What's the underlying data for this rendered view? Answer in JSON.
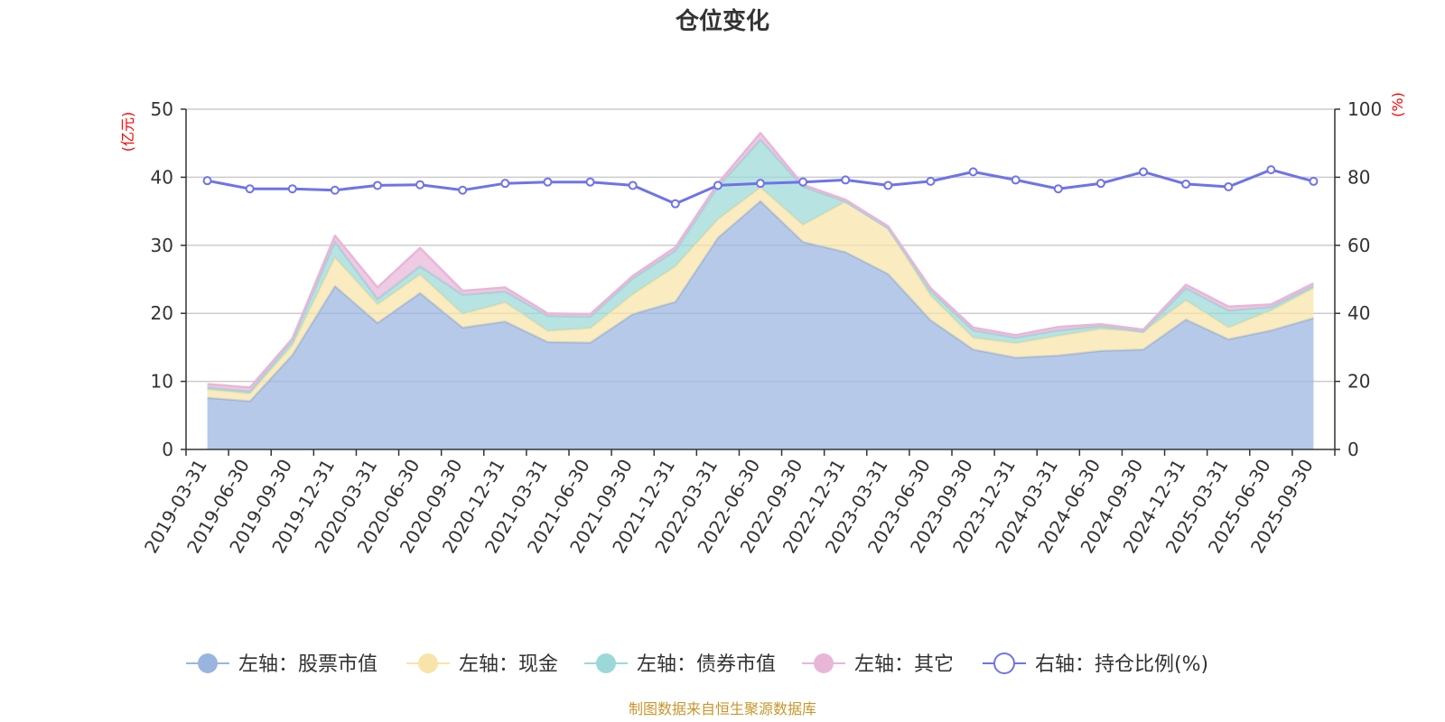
{
  "chart_data": {
    "type": "area",
    "title": "仓位变化",
    "left_axis_unit": "(亿元)",
    "right_axis_unit": "(%)",
    "left_ylim": [
      0,
      50
    ],
    "left_ticks": [
      0,
      10,
      20,
      30,
      40,
      50
    ],
    "right_ylim": [
      0,
      100
    ],
    "right_ticks": [
      0,
      20,
      40,
      60,
      80,
      100
    ],
    "categories": [
      "2019-03-31",
      "2019-06-30",
      "2019-09-30",
      "2019-12-31",
      "2020-03-31",
      "2020-06-30",
      "2020-09-30",
      "2020-12-31",
      "2021-03-31",
      "2021-06-30",
      "2021-09-30",
      "2021-12-31",
      "2022-03-31",
      "2022-06-30",
      "2022-09-30",
      "2022-12-31",
      "2023-03-31",
      "2023-06-30",
      "2023-09-30",
      "2023-12-31",
      "2024-03-31",
      "2024-06-30",
      "2024-09-30",
      "2024-12-31",
      "2025-03-31",
      "2025-06-30",
      "2025-09-30"
    ],
    "series": [
      {
        "name": "左轴：股票市值",
        "axis": "left",
        "stacked": true,
        "color": "#9ab4e0",
        "values": [
          7.6,
          7.1,
          13.9,
          24.0,
          18.6,
          23.0,
          17.9,
          18.8,
          15.8,
          15.7,
          19.9,
          21.7,
          31.1,
          36.5,
          30.5,
          29.0,
          25.8,
          19.0,
          14.7,
          13.5,
          13.8,
          14.5,
          14.7,
          19.1,
          16.2,
          17.5,
          19.3
        ]
      },
      {
        "name": "左轴：现金",
        "axis": "left",
        "stacked": true,
        "color": "#f8e4a8",
        "values": [
          1.2,
          1.1,
          1.4,
          4.2,
          2.7,
          2.7,
          2.0,
          2.8,
          1.6,
          2.1,
          2.9,
          5.2,
          2.7,
          2.0,
          2.5,
          7.4,
          6.7,
          3.6,
          1.7,
          2.1,
          2.9,
          3.2,
          2.6,
          2.8,
          1.7,
          2.9,
          4.4
        ]
      },
      {
        "name": "左轴：债券市值",
        "axis": "left",
        "stacked": true,
        "color": "#9dd8d8",
        "values": [
          0.3,
          0.3,
          0.7,
          2.3,
          0.8,
          1.2,
          2.8,
          1.6,
          2.2,
          1.7,
          2.3,
          2.3,
          4.8,
          7.0,
          5.6,
          0.0,
          0.0,
          0.7,
          1.1,
          0.8,
          0.8,
          0.4,
          0.0,
          1.8,
          2.5,
          0.5,
          0.3
        ]
      },
      {
        "name": "左轴：其它",
        "axis": "left",
        "stacked": true,
        "color": "#e8b6d8",
        "values": [
          0.5,
          0.6,
          0.3,
          0.9,
          1.7,
          2.7,
          0.6,
          0.6,
          0.4,
          0.4,
          0.4,
          0.5,
          0.5,
          1.0,
          0.3,
          0.3,
          0.3,
          0.4,
          0.4,
          0.4,
          0.5,
          0.3,
          0.3,
          0.5,
          0.6,
          0.4,
          0.4
        ]
      },
      {
        "name": "右轴：持仓比例(%)",
        "axis": "right",
        "stacked": false,
        "color": "#6f73e8",
        "values": [
          79,
          76.6,
          76.6,
          76.2,
          77.6,
          77.8,
          76.2,
          78.2,
          78.6,
          78.6,
          77.6,
          72.2,
          77.6,
          78.2,
          78.6,
          79.2,
          77.6,
          78.8,
          81.6,
          79.2,
          76.6,
          78.2,
          81.6,
          78.0,
          77.2,
          82.2,
          78.8
        ]
      }
    ],
    "source": "制图数据来自恒生聚源数据库"
  }
}
